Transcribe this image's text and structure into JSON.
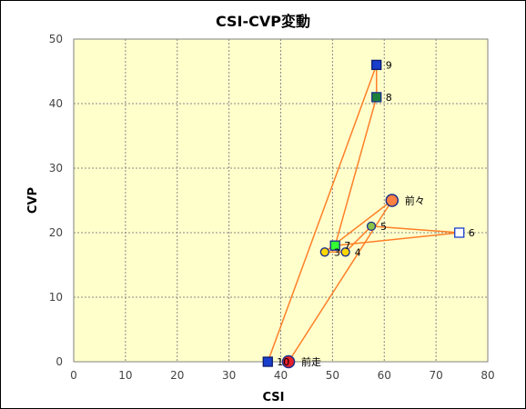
{
  "chart_data": {
    "type": "scatter",
    "title": "CSI-CVP変動",
    "xlabel": "CSI",
    "ylabel": "CVP",
    "xlim": [
      0,
      80
    ],
    "ylim": [
      0,
      50
    ],
    "xticks": [
      0,
      10,
      20,
      30,
      40,
      50,
      60,
      70,
      80
    ],
    "yticks": [
      0,
      10,
      20,
      30,
      40,
      50
    ],
    "grid": true,
    "colors": {
      "plot_bg": "#ffffcc",
      "grid": "#888888",
      "line": "#ff7f27"
    },
    "points": [
      {
        "label": "前走",
        "x": 41.5,
        "y": 0,
        "marker": "circle-large",
        "fill": "#e8202a",
        "stroke": "#1a2e8c"
      },
      {
        "label": "前々",
        "x": 61.5,
        "y": 25,
        "marker": "circle-large",
        "fill": "#ff8040",
        "stroke": "#1a2e8c"
      },
      {
        "label": "3",
        "x": 48.5,
        "y": 17,
        "marker": "circle",
        "fill": "#ffd700",
        "stroke": "#1a2e8c"
      },
      {
        "label": "4",
        "x": 52.5,
        "y": 17,
        "marker": "circle",
        "fill": "#ffd700",
        "stroke": "#1a2e8c"
      },
      {
        "label": "5",
        "x": 57.5,
        "y": 21,
        "marker": "circle",
        "fill": "#8bc34a",
        "stroke": "#1a2e8c"
      },
      {
        "label": "6",
        "x": 74.5,
        "y": 20,
        "marker": "square",
        "fill": "#ffffff",
        "stroke": "#1a3ecc"
      },
      {
        "label": "7",
        "x": 50.5,
        "y": 18,
        "marker": "square",
        "fill": "#33ff33",
        "stroke": "#1a2e8c"
      },
      {
        "label": "8",
        "x": 58.5,
        "y": 41,
        "marker": "square",
        "fill": "#1e7f3a",
        "stroke": "#1a2e8c"
      },
      {
        "label": "9",
        "x": 58.5,
        "y": 46,
        "marker": "square",
        "fill": "#1a3ecc",
        "stroke": "#0a1a6c"
      },
      {
        "label": "10",
        "x": 37.5,
        "y": 0,
        "marker": "square",
        "fill": "#1a3ecc",
        "stroke": "#0a1a6c"
      }
    ]
  }
}
